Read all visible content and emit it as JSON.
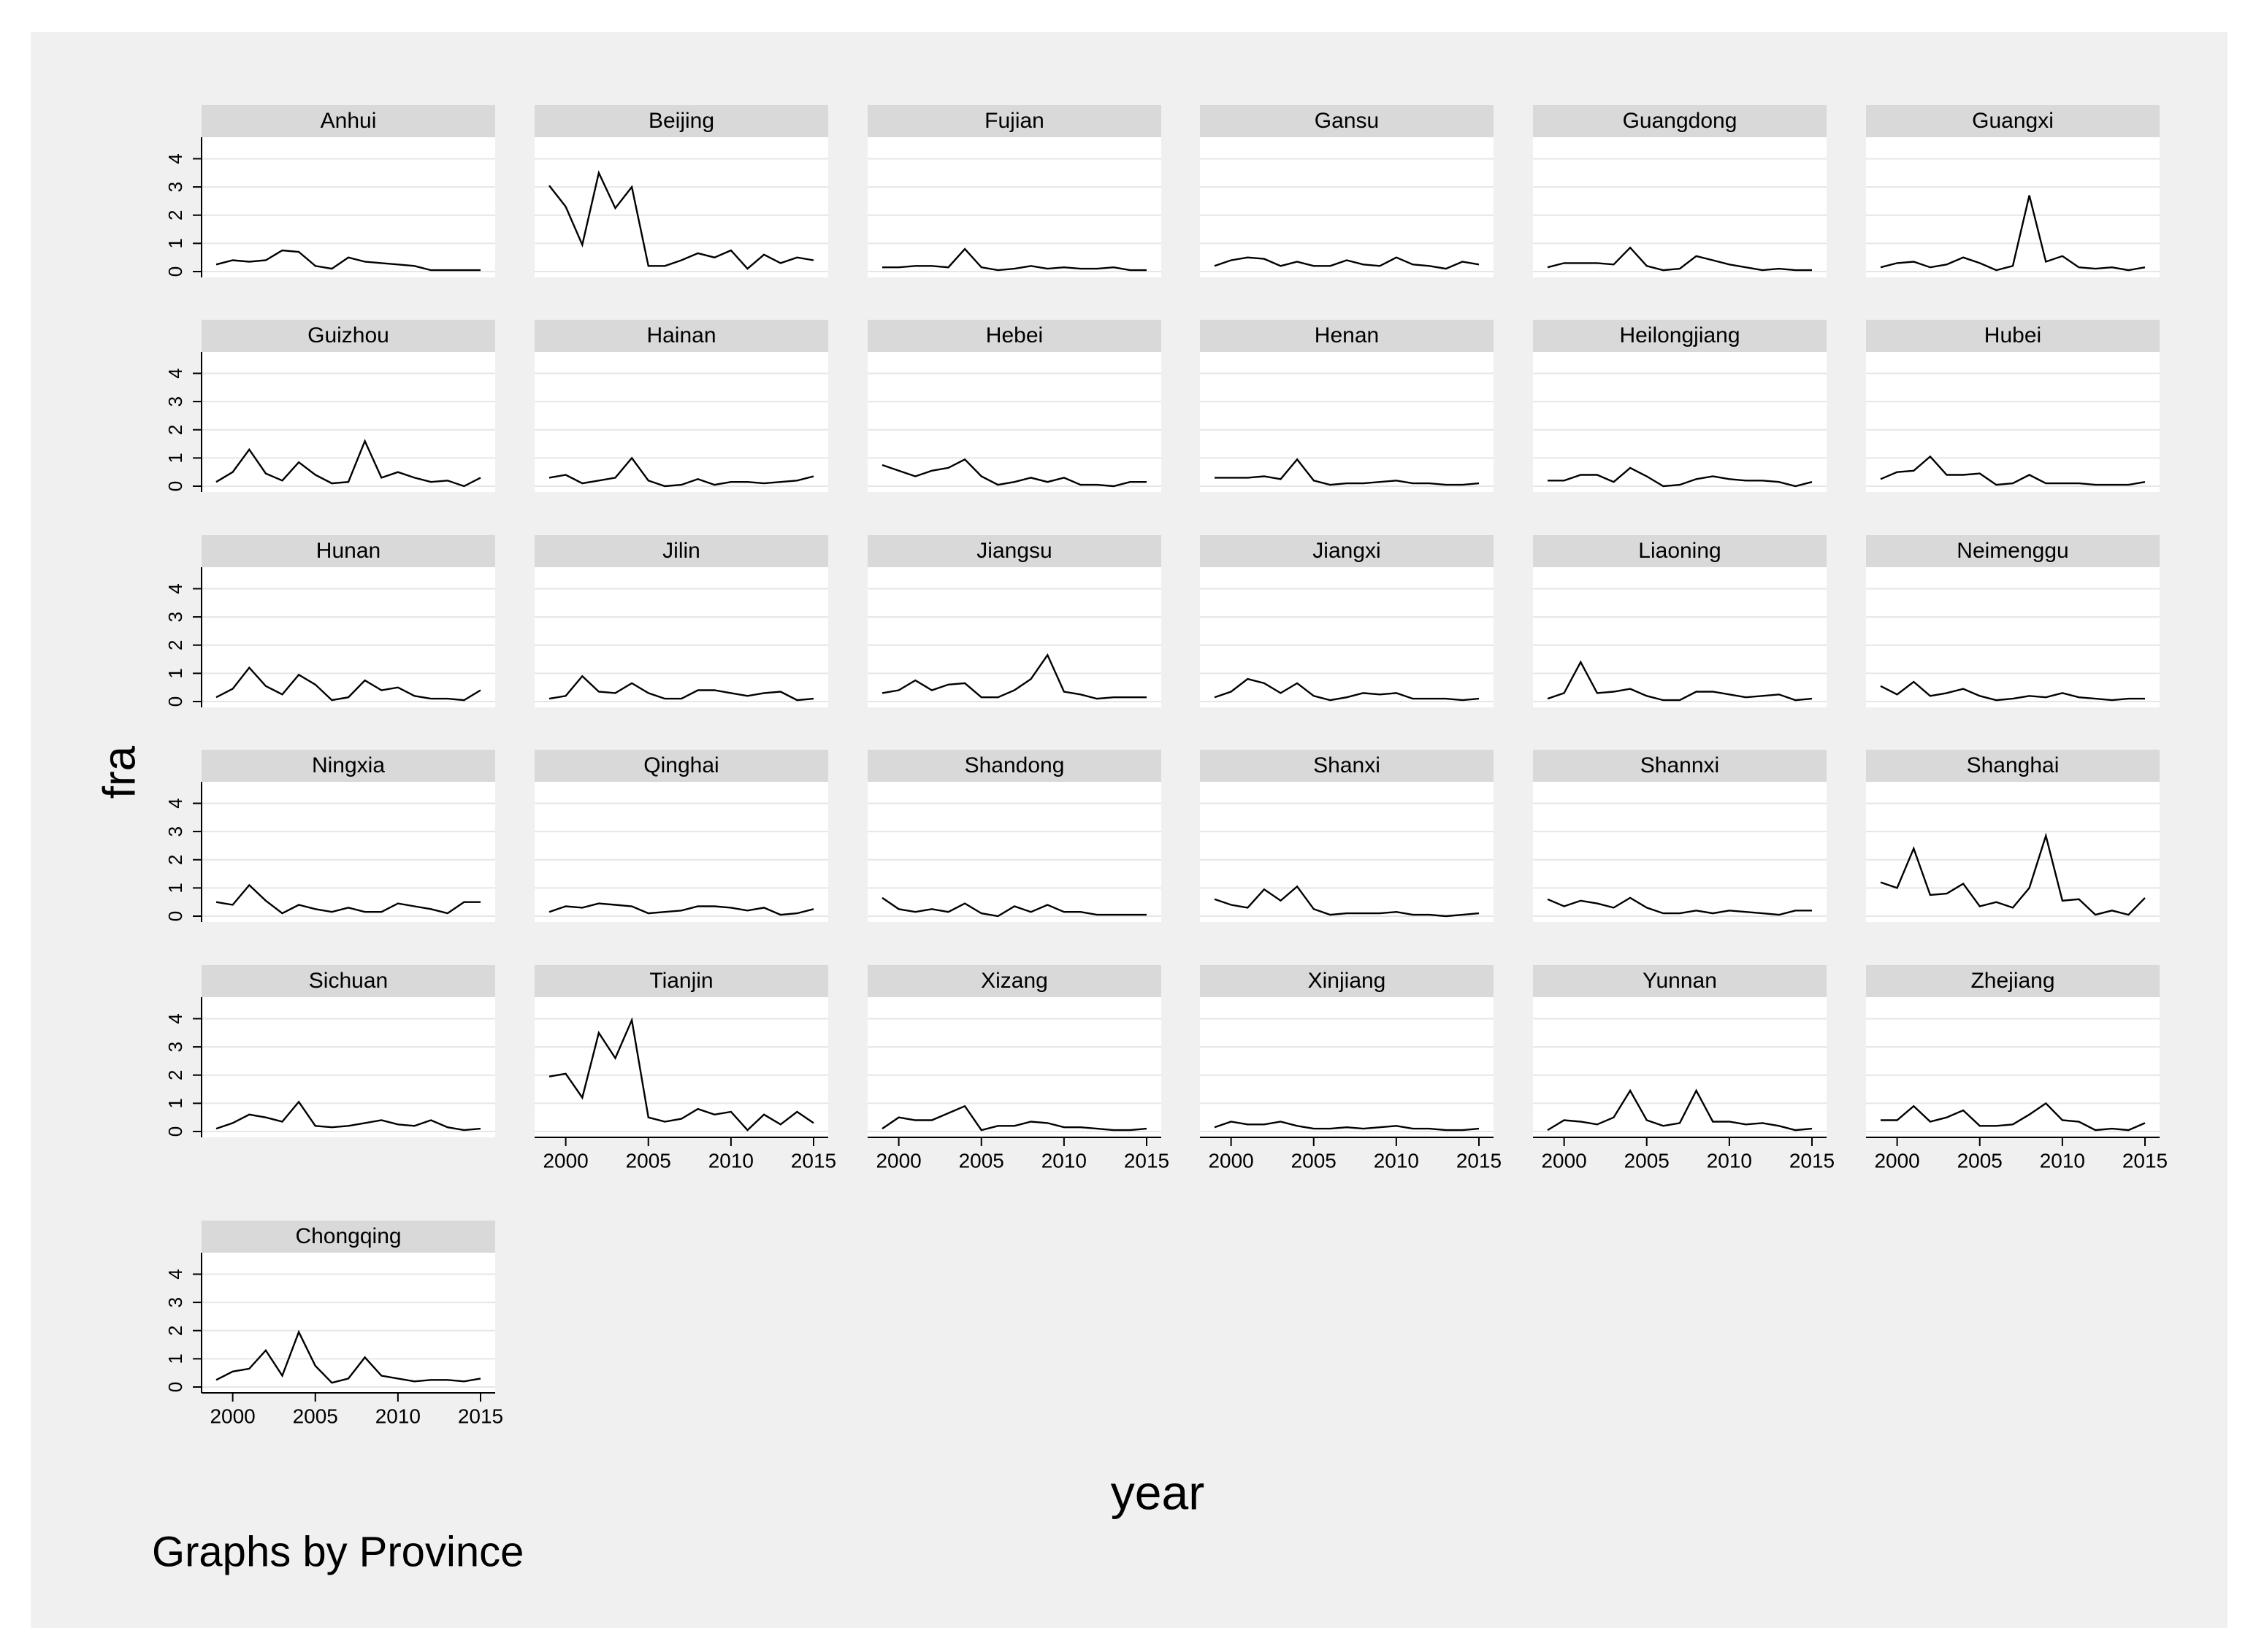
{
  "chart_data": {
    "type": "line",
    "xlabel": "year",
    "ylabel": "fra",
    "note": "Graphs by Province",
    "xlim": [
      1999,
      2015
    ],
    "ylim": [
      0,
      4.4
    ],
    "xticks": [
      2000,
      2005,
      2010,
      2015
    ],
    "yticks": [
      0,
      1,
      2,
      3,
      4
    ],
    "grid": true,
    "x": [
      1999,
      2000,
      2001,
      2002,
      2003,
      2004,
      2005,
      2006,
      2007,
      2008,
      2009,
      2010,
      2011,
      2012,
      2013,
      2014,
      2015
    ],
    "panels": [
      {
        "name": "Anhui",
        "values": [
          0.25,
          0.4,
          0.35,
          0.4,
          0.75,
          0.7,
          0.2,
          0.1,
          0.5,
          0.35,
          0.3,
          0.25,
          0.2,
          0.05,
          0.05,
          0.05,
          0.05
        ]
      },
      {
        "name": "Beijing",
        "values": [
          3.05,
          2.3,
          0.95,
          3.5,
          2.25,
          3.0,
          0.2,
          0.2,
          0.4,
          0.65,
          0.5,
          0.75,
          0.1,
          0.6,
          0.3,
          0.5,
          0.4
        ]
      },
      {
        "name": "Fujian",
        "values": [
          0.15,
          0.15,
          0.2,
          0.2,
          0.15,
          0.8,
          0.15,
          0.05,
          0.1,
          0.2,
          0.1,
          0.15,
          0.1,
          0.1,
          0.15,
          0.05,
          0.05
        ]
      },
      {
        "name": "Gansu",
        "values": [
          0.2,
          0.4,
          0.5,
          0.45,
          0.2,
          0.35,
          0.2,
          0.2,
          0.4,
          0.25,
          0.2,
          0.5,
          0.25,
          0.2,
          0.1,
          0.35,
          0.25
        ]
      },
      {
        "name": "Guangdong",
        "values": [
          0.15,
          0.3,
          0.3,
          0.3,
          0.25,
          0.85,
          0.2,
          0.05,
          0.1,
          0.55,
          0.4,
          0.25,
          0.15,
          0.05,
          0.1,
          0.05,
          0.05
        ]
      },
      {
        "name": "Guangxi",
        "values": [
          0.15,
          0.3,
          0.35,
          0.15,
          0.25,
          0.5,
          0.3,
          0.05,
          0.2,
          2.7,
          0.35,
          0.55,
          0.15,
          0.1,
          0.15,
          0.05,
          0.15
        ]
      },
      {
        "name": "Guizhou",
        "values": [
          0.15,
          0.5,
          1.3,
          0.45,
          0.2,
          0.85,
          0.4,
          0.1,
          0.15,
          1.6,
          0.3,
          0.5,
          0.3,
          0.15,
          0.2,
          0.0,
          0.3
        ]
      },
      {
        "name": "Hainan",
        "values": [
          0.3,
          0.4,
          0.1,
          0.2,
          0.3,
          1.0,
          0.2,
          0.0,
          0.05,
          0.25,
          0.05,
          0.15,
          0.15,
          0.1,
          0.15,
          0.2,
          0.35
        ]
      },
      {
        "name": "Hebei",
        "values": [
          0.75,
          0.55,
          0.35,
          0.55,
          0.65,
          0.95,
          0.35,
          0.05,
          0.15,
          0.3,
          0.15,
          0.3,
          0.05,
          0.05,
          0.0,
          0.15,
          0.15
        ]
      },
      {
        "name": "Henan",
        "values": [
          0.3,
          0.3,
          0.3,
          0.35,
          0.25,
          0.95,
          0.2,
          0.05,
          0.1,
          0.1,
          0.15,
          0.2,
          0.1,
          0.1,
          0.05,
          0.05,
          0.1
        ]
      },
      {
        "name": "Heilongjiang",
        "values": [
          0.2,
          0.2,
          0.4,
          0.4,
          0.15,
          0.65,
          0.35,
          0.0,
          0.05,
          0.25,
          0.35,
          0.25,
          0.2,
          0.2,
          0.15,
          0.0,
          0.15
        ]
      },
      {
        "name": "Hubei",
        "values": [
          0.25,
          0.5,
          0.55,
          1.05,
          0.4,
          0.4,
          0.45,
          0.05,
          0.1,
          0.4,
          0.1,
          0.1,
          0.1,
          0.05,
          0.05,
          0.05,
          0.15
        ]
      },
      {
        "name": "Hunan",
        "values": [
          0.15,
          0.45,
          1.2,
          0.55,
          0.25,
          0.95,
          0.6,
          0.05,
          0.15,
          0.75,
          0.4,
          0.5,
          0.2,
          0.1,
          0.1,
          0.05,
          0.4
        ]
      },
      {
        "name": "Jilin",
        "values": [
          0.1,
          0.2,
          0.9,
          0.35,
          0.3,
          0.65,
          0.3,
          0.1,
          0.1,
          0.4,
          0.4,
          0.3,
          0.2,
          0.3,
          0.35,
          0.05,
          0.1
        ]
      },
      {
        "name": "Jiangsu",
        "values": [
          0.3,
          0.4,
          0.75,
          0.4,
          0.6,
          0.65,
          0.15,
          0.15,
          0.4,
          0.8,
          1.65,
          0.35,
          0.25,
          0.1,
          0.15,
          0.15,
          0.15
        ]
      },
      {
        "name": "Jiangxi",
        "values": [
          0.15,
          0.35,
          0.8,
          0.65,
          0.3,
          0.65,
          0.2,
          0.05,
          0.15,
          0.3,
          0.25,
          0.3,
          0.1,
          0.1,
          0.1,
          0.05,
          0.1
        ]
      },
      {
        "name": "Liaoning",
        "values": [
          0.1,
          0.3,
          1.4,
          0.3,
          0.35,
          0.45,
          0.2,
          0.05,
          0.05,
          0.35,
          0.35,
          0.25,
          0.15,
          0.2,
          0.25,
          0.05,
          0.1
        ]
      },
      {
        "name": "Neimenggu",
        "values": [
          0.55,
          0.25,
          0.7,
          0.2,
          0.3,
          0.45,
          0.2,
          0.05,
          0.1,
          0.2,
          0.15,
          0.3,
          0.15,
          0.1,
          0.05,
          0.1,
          0.1
        ]
      },
      {
        "name": "Ningxia",
        "values": [
          0.5,
          0.4,
          1.1,
          0.55,
          0.1,
          0.4,
          0.25,
          0.15,
          0.3,
          0.15,
          0.15,
          0.45,
          0.35,
          0.25,
          0.1,
          0.5,
          0.5
        ]
      },
      {
        "name": "Qinghai",
        "values": [
          0.15,
          0.35,
          0.3,
          0.45,
          0.4,
          0.35,
          0.1,
          0.15,
          0.2,
          0.35,
          0.35,
          0.3,
          0.2,
          0.3,
          0.05,
          0.1,
          0.25
        ]
      },
      {
        "name": "Shandong",
        "values": [
          0.65,
          0.25,
          0.15,
          0.25,
          0.15,
          0.45,
          0.1,
          0.0,
          0.35,
          0.15,
          0.4,
          0.15,
          0.15,
          0.05,
          0.05,
          0.05,
          0.05
        ]
      },
      {
        "name": "Shanxi",
        "values": [
          0.6,
          0.4,
          0.3,
          0.95,
          0.55,
          1.05,
          0.25,
          0.05,
          0.1,
          0.1,
          0.1,
          0.15,
          0.05,
          0.05,
          0.0,
          0.05,
          0.1
        ]
      },
      {
        "name": "Shannxi",
        "values": [
          0.6,
          0.35,
          0.55,
          0.45,
          0.3,
          0.65,
          0.3,
          0.1,
          0.1,
          0.2,
          0.1,
          0.2,
          0.15,
          0.1,
          0.05,
          0.2,
          0.2
        ]
      },
      {
        "name": "Shanghai",
        "values": [
          1.2,
          1.0,
          2.4,
          0.75,
          0.8,
          1.15,
          0.35,
          0.5,
          0.3,
          1.0,
          2.85,
          0.55,
          0.6,
          0.05,
          0.2,
          0.05,
          0.65
        ]
      },
      {
        "name": "Sichuan",
        "values": [
          0.1,
          0.3,
          0.6,
          0.5,
          0.35,
          1.05,
          0.2,
          0.15,
          0.2,
          0.3,
          0.4,
          0.25,
          0.2,
          0.4,
          0.15,
          0.05,
          0.1
        ]
      },
      {
        "name": "Tianjin",
        "values": [
          1.95,
          2.05,
          1.2,
          3.5,
          2.6,
          3.95,
          0.5,
          0.35,
          0.45,
          0.8,
          0.6,
          0.7,
          0.05,
          0.6,
          0.25,
          0.7,
          0.3
        ]
      },
      {
        "name": "Xizang",
        "values": [
          0.1,
          0.5,
          0.4,
          0.4,
          0.65,
          0.9,
          0.05,
          0.2,
          0.2,
          0.35,
          0.3,
          0.15,
          0.15,
          0.1,
          0.05,
          0.05,
          0.1
        ]
      },
      {
        "name": "Xinjiang",
        "values": [
          0.15,
          0.35,
          0.25,
          0.25,
          0.35,
          0.2,
          0.1,
          0.1,
          0.15,
          0.1,
          0.15,
          0.2,
          0.1,
          0.1,
          0.05,
          0.05,
          0.1
        ]
      },
      {
        "name": "Yunnan",
        "values": [
          0.05,
          0.4,
          0.35,
          0.25,
          0.5,
          1.45,
          0.4,
          0.2,
          0.3,
          1.45,
          0.35,
          0.35,
          0.25,
          0.3,
          0.2,
          0.05,
          0.1
        ]
      },
      {
        "name": "Zhejiang",
        "values": [
          0.4,
          0.4,
          0.9,
          0.35,
          0.5,
          0.75,
          0.2,
          0.2,
          0.25,
          0.6,
          1.0,
          0.4,
          0.35,
          0.05,
          0.1,
          0.05,
          0.3
        ]
      },
      {
        "name": "Chongqing",
        "values": [
          0.25,
          0.55,
          0.65,
          1.3,
          0.4,
          1.95,
          0.75,
          0.15,
          0.3,
          1.05,
          0.4,
          0.3,
          0.2,
          0.25,
          0.25,
          0.2,
          0.3
        ]
      }
    ]
  },
  "colors": {
    "outer_background": "#f0f0f0",
    "plot_background": "#ffffff",
    "strip_background": "#d9d9d9",
    "grid": "#e6e6e6",
    "line": "#000000",
    "text": "#000000"
  }
}
